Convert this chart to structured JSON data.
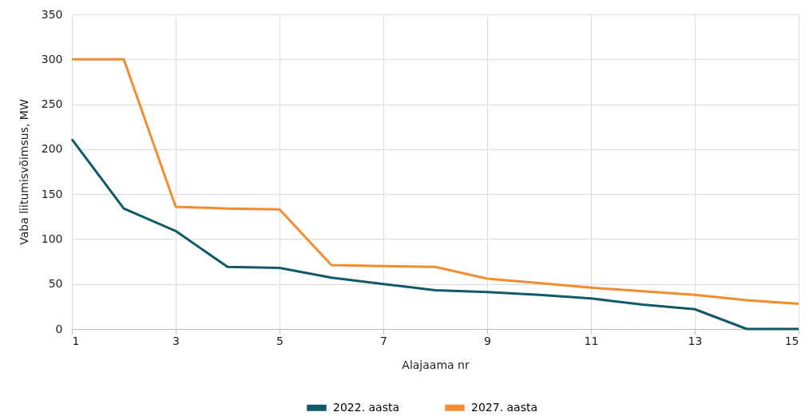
{
  "chart_data": {
    "type": "line",
    "xlabel": "Alajaama nr",
    "ylabel": "Vaba liitumisvõimsus, MW",
    "x": [
      1,
      2,
      3,
      4,
      5,
      6,
      7,
      8,
      9,
      10,
      11,
      12,
      13,
      14,
      15
    ],
    "series": [
      {
        "name": "2022. aasta",
        "color": "#0f5a66",
        "values": [
          211,
          134,
          109,
          69,
          68,
          57,
          50,
          43,
          41,
          38,
          34,
          27,
          22,
          0,
          0
        ]
      },
      {
        "name": "2027. aasta",
        "color": "#f28c30",
        "values": [
          300,
          300,
          136,
          134,
          133,
          71,
          70,
          69,
          56,
          51,
          46,
          42,
          38,
          32,
          28
        ]
      }
    ],
    "xlim": [
      1,
      15
    ],
    "xticks": [
      1,
      3,
      5,
      7,
      9,
      11,
      13,
      15
    ],
    "ylim": [
      0,
      350
    ],
    "yticks": [
      0,
      50,
      100,
      150,
      200,
      250,
      300,
      350
    ],
    "grid": true,
    "legend": "bottom",
    "marker": "none",
    "line_style": "solid"
  }
}
